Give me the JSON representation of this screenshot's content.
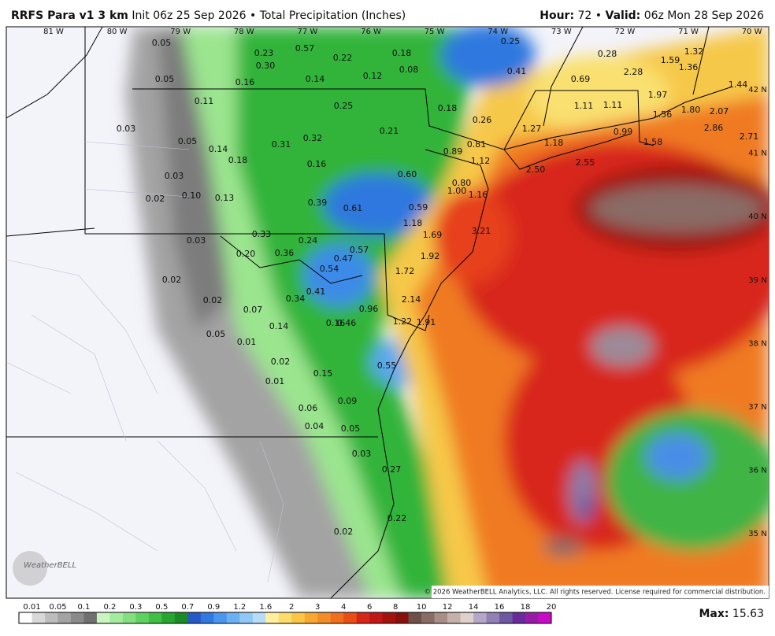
{
  "header": {
    "model": "RRFS Para v1 3 km",
    "init": "Init 06z 25 Sep 2026",
    "bullet": "•",
    "field": "Total Precipitation (Inches)",
    "hour_label": "Hour:",
    "hour": "72",
    "valid_label": "Valid:",
    "valid": "06z Mon 28 Sep 2026"
  },
  "map": {
    "lon_labels": [
      "81 W",
      "80 W",
      "79 W",
      "78 W",
      "77 W",
      "76 W",
      "75 W",
      "74 W",
      "73 W",
      "72 W",
      "71 W",
      "70 W"
    ],
    "lat_labels": [
      "42 N",
      "41 N",
      "40 N",
      "39 N",
      "38 N",
      "37 N",
      "36 N",
      "35 N"
    ],
    "amounts": [
      "0.05",
      "0.23",
      "0.57",
      "0.30",
      "0.22",
      "0.18",
      "0.25",
      "0.28",
      "1.59",
      "1.32",
      "1.36",
      "0.05",
      "0.16",
      "0.14",
      "0.12",
      "0.08",
      "0.41",
      "0.69",
      "2.28",
      "1.44",
      "1.97",
      "0.11",
      "0.25",
      "0.18",
      "1.11",
      "1.11",
      "1.56",
      "1.80",
      "2.07",
      "0.26",
      "0.03",
      "0.21",
      "1.27",
      "0.99",
      "2.86",
      "2.71",
      "0.05",
      "0.32",
      "0.31",
      "0.14",
      "0.89",
      "0.81",
      "1.18",
      "1.58",
      "0.18",
      "0.16",
      "1.12",
      "2.50",
      "2.55",
      "0.03",
      "0.60",
      "0.80",
      "1.00",
      "1.16",
      "0.02",
      "0.10",
      "0.13",
      "0.39",
      "0.61",
      "0.59",
      "1.18",
      "1.69",
      "3.21",
      "0.33",
      "0.03",
      "0.24",
      "0.20",
      "0.36",
      "0.57",
      "0.47",
      "1.92",
      "0.54",
      "1.72",
      "0.02",
      "0.41",
      "0.34",
      "2.14",
      "0.02",
      "0.07",
      "0.96",
      "0.16",
      "0.46",
      "1.22",
      "1.91",
      "0.14",
      "0.05",
      "0.01",
      "0.55",
      "0.02",
      "0.15",
      "0.01",
      "0.09",
      "0.06",
      "0.04",
      "0.05",
      "0.03",
      "0.27",
      "0.22",
      "0.02"
    ],
    "logo": "WeatherBELL",
    "copyright": "© 2026 WeatherBELL Analytics, LLC. All rights reserved. License required for commercial distribution."
  },
  "legend": {
    "ticks": [
      "0.01",
      "0.05",
      "0.1",
      "0.2",
      "0.3",
      "0.5",
      "0.7",
      "0.9",
      "1.2",
      "1.6",
      "2",
      "3",
      "4",
      "6",
      "8",
      "10",
      "12",
      "14",
      "16",
      "18",
      "20"
    ],
    "max_label": "Max:",
    "max": "15.63"
  }
}
